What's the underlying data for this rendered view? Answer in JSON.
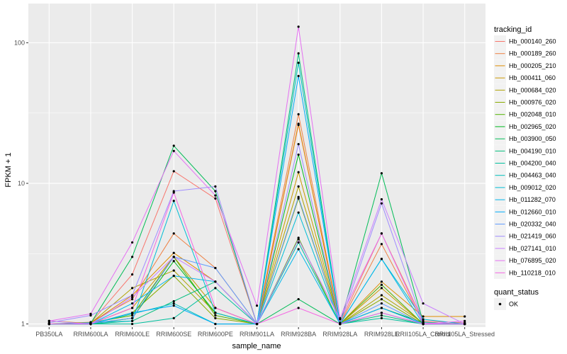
{
  "chart_data": {
    "type": "line",
    "xlabel": "sample_name",
    "ylabel": "FPKM + 1",
    "y_scale": "log10",
    "ylim": [
      0.95,
      190
    ],
    "y_ticks": [
      {
        "value": 1,
        "label": "1"
      },
      {
        "value": 10,
        "label": "10"
      },
      {
        "value": 100,
        "label": "100"
      }
    ],
    "grid": true,
    "legend_position": "right",
    "categories": [
      "PB350LA",
      "RRIM600LA",
      "RRIM600LE",
      "RRIM600SE",
      "RRIM600PE",
      "RRIM901LA",
      "RRIM928BA",
      "RRIM928LA",
      "RRIM928LE",
      "RRII105LA_Control",
      "RRII105LA_Stressed"
    ],
    "series": [
      {
        "name": "Hb_000140_260",
        "color": "#F8766D",
        "values": [
          1.0,
          1.02,
          2.25,
          12.2,
          7.8,
          1.0,
          26.0,
          1.02,
          4.4,
          1.05,
          1.02
        ]
      },
      {
        "name": "Hb_000189_260",
        "color": "#EE8044",
        "values": [
          1.0,
          1.03,
          1.5,
          4.4,
          2.5,
          1.0,
          31.0,
          1.0,
          3.7,
          1.02,
          1.0
        ]
      },
      {
        "name": "Hb_000205_210",
        "color": "#DE8C00",
        "values": [
          1.05,
          1.01,
          1.6,
          3.2,
          2.0,
          1.0,
          26.5,
          1.0,
          2.0,
          1.13,
          1.13
        ]
      },
      {
        "name": "Hb_000411_060",
        "color": "#C99800",
        "values": [
          1.0,
          1.0,
          1.3,
          3.0,
          1.3,
          1.0,
          12.0,
          1.0,
          1.8,
          1.0,
          1.0
        ]
      },
      {
        "name": "Hb_000684_020",
        "color": "#AEA200",
        "values": [
          1.0,
          1.01,
          1.8,
          2.4,
          1.2,
          1.0,
          9.5,
          1.0,
          1.6,
          1.02,
          1.0
        ]
      },
      {
        "name": "Hb_000976_020",
        "color": "#8AAB00",
        "values": [
          1.0,
          1.0,
          1.2,
          2.2,
          1.1,
          1.0,
          7.8,
          1.0,
          1.5,
          1.0,
          1.0
        ]
      },
      {
        "name": "Hb_002048_010",
        "color": "#53B400",
        "values": [
          1.0,
          1.02,
          1.15,
          3.0,
          1.15,
          1.0,
          4.1,
          1.0,
          1.9,
          1.0,
          1.0
        ]
      },
      {
        "name": "Hb_002965_020",
        "color": "#00B81F",
        "values": [
          1.0,
          1.0,
          1.1,
          2.8,
          1.2,
          1.0,
          16.0,
          1.0,
          1.3,
          1.02,
          1.0
        ]
      },
      {
        "name": "Hb_003900_050",
        "color": "#00BC56",
        "values": [
          1.0,
          1.01,
          3.0,
          18.5,
          8.8,
          1.0,
          1.5,
          1.0,
          11.8,
          1.03,
          1.0
        ]
      },
      {
        "name": "Hb_004190_010",
        "color": "#00BE7D",
        "values": [
          1.0,
          1.0,
          1.05,
          1.45,
          2.0,
          1.0,
          84.0,
          1.0,
          1.15,
          1.0,
          1.0
        ]
      },
      {
        "name": "Hb_004200_040",
        "color": "#00C09E",
        "values": [
          1.0,
          1.0,
          1.0,
          1.1,
          1.8,
          1.0,
          3.8,
          1.0,
          1.1,
          1.0,
          1.0
        ]
      },
      {
        "name": "Hb_004463_040",
        "color": "#00C0BC",
        "values": [
          1.0,
          1.0,
          1.18,
          1.4,
          1.0,
          1.0,
          72.0,
          1.0,
          1.2,
          1.0,
          1.0
        ]
      },
      {
        "name": "Hb_009012_020",
        "color": "#00BDD5",
        "values": [
          1.0,
          1.02,
          1.05,
          7.5,
          1.2,
          1.0,
          6.2,
          1.0,
          2.9,
          1.08,
          1.0
        ]
      },
      {
        "name": "Hb_011282_070",
        "color": "#00B7EB",
        "values": [
          1.0,
          1.0,
          1.4,
          2.2,
          2.0,
          1.0,
          3.4,
          1.0,
          2.9,
          1.0,
          1.0
        ]
      },
      {
        "name": "Hb_012660_010",
        "color": "#00ADFA",
        "values": [
          1.0,
          1.0,
          1.2,
          1.35,
          1.0,
          1.0,
          58.0,
          1.0,
          1.3,
          1.0,
          1.0
        ]
      },
      {
        "name": "Hb_020332_040",
        "color": "#619CFF",
        "values": [
          1.0,
          1.01,
          1.1,
          3.0,
          2.5,
          1.0,
          8.0,
          1.0,
          1.4,
          1.0,
          1.0
        ]
      },
      {
        "name": "Hb_021419_060",
        "color": "#A08CFF",
        "values": [
          1.02,
          1.15,
          1.6,
          8.8,
          9.5,
          1.0,
          19.0,
          1.0,
          7.2,
          1.02,
          1.0
        ]
      },
      {
        "name": "Hb_027141_010",
        "color": "#C97EFF",
        "values": [
          1.05,
          1.0,
          1.55,
          3.0,
          2.0,
          1.0,
          4.0,
          1.08,
          7.7,
          1.4,
          1.0
        ]
      },
      {
        "name": "Hb_076895_020",
        "color": "#E570F2",
        "values": [
          1.05,
          1.18,
          3.8,
          17.0,
          8.2,
          1.35,
          130.0,
          1.1,
          4.4,
          1.0,
          1.05
        ]
      },
      {
        "name": "Hb_110218_010",
        "color": "#F564E3",
        "values": [
          1.0,
          1.0,
          1.3,
          8.6,
          1.3,
          1.0,
          1.3,
          1.0,
          1.2,
          1.0,
          1.0
        ]
      }
    ],
    "legend": {
      "title": "tracking_id",
      "entries": [
        "Hb_000140_260",
        "Hb_000189_260",
        "Hb_000205_210",
        "Hb_000411_060",
        "Hb_000684_020",
        "Hb_000976_020",
        "Hb_002048_010",
        "Hb_002965_020",
        "Hb_003900_050",
        "Hb_004190_010",
        "Hb_004200_040",
        "Hb_004463_040",
        "Hb_009012_020",
        "Hb_011282_070",
        "Hb_012660_010",
        "Hb_020332_040",
        "Hb_021419_060",
        "Hb_027141_010",
        "Hb_076895_020",
        "Hb_110218_010"
      ]
    },
    "shape_legend": {
      "title": "quant_status",
      "entries": [
        "OK"
      ]
    },
    "colors": {
      "panel_bg": "#EBEBEB",
      "grid": "#FFFFFF",
      "point": "#000000"
    }
  }
}
